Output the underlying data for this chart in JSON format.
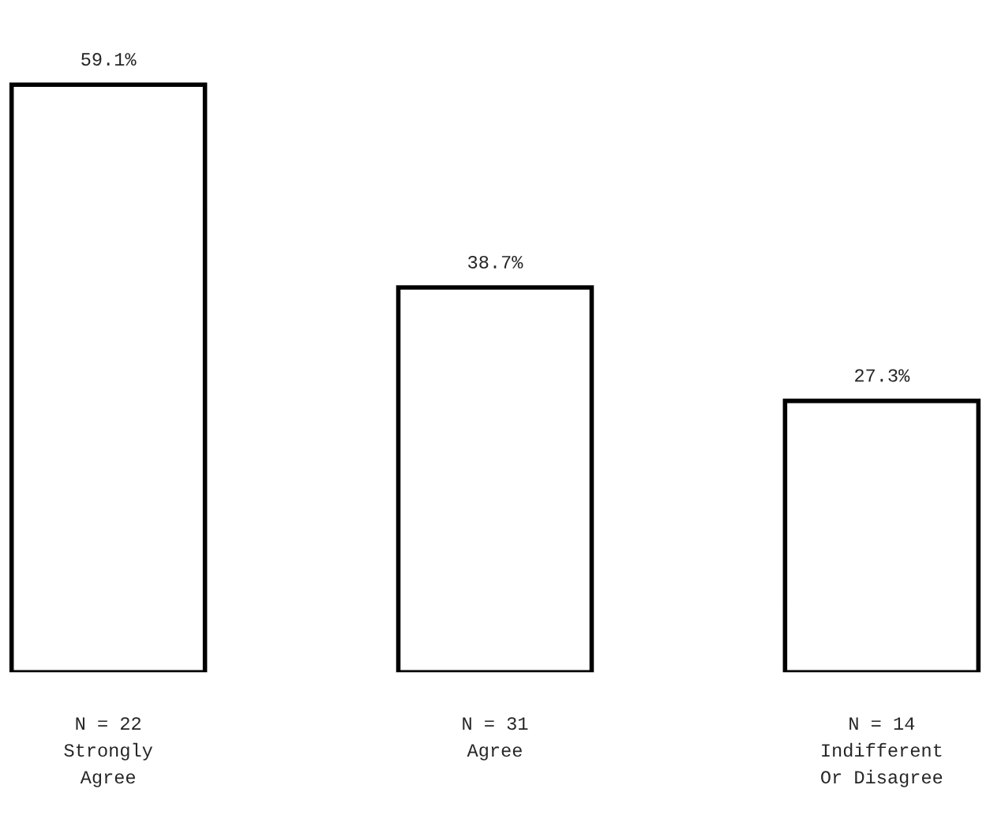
{
  "chart_data": {
    "type": "bar",
    "categories": [
      "N = 22\nStrongly\nAgree",
      "N = 31\nAgree",
      "N = 14\nIndifferent\nOr Disagree"
    ],
    "values": [
      59.1,
      38.7,
      27.3
    ],
    "value_labels": [
      "59.1%",
      "38.7%",
      "27.3%"
    ],
    "color": "#ffffff",
    "grid": false,
    "legend": false
  }
}
